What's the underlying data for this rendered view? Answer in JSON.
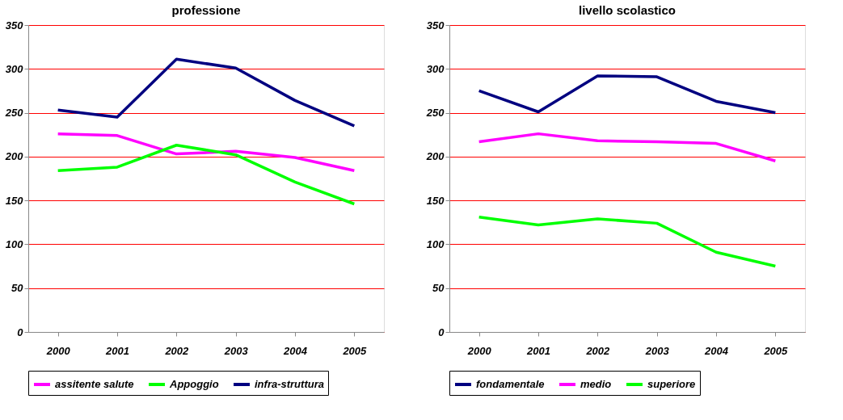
{
  "chart_data": [
    {
      "type": "line",
      "title": "professione",
      "categories": [
        "2000",
        "2001",
        "2002",
        "2003",
        "2004",
        "2005"
      ],
      "ylim": [
        0,
        350
      ],
      "yticks": [
        0,
        50,
        100,
        150,
        200,
        250,
        300,
        350
      ],
      "grid": "y",
      "legend": "bottom",
      "marker": "none",
      "line_style": "solid",
      "series": [
        {
          "name": "assitente salute",
          "color": "#ff00ff",
          "values": [
            226,
            224,
            203,
            206,
            199,
            184
          ]
        },
        {
          "name": "Appoggio",
          "color": "#00ff00",
          "values": [
            184,
            188,
            213,
            202,
            171,
            146
          ]
        },
        {
          "name": "infra-struttura",
          "color": "#000080",
          "values": [
            253,
            245,
            311,
            301,
            264,
            235
          ]
        }
      ]
    },
    {
      "type": "line",
      "title": "livello scolastico",
      "categories": [
        "2000",
        "2001",
        "2002",
        "2003",
        "2004",
        "2005"
      ],
      "ylim": [
        0,
        350
      ],
      "yticks": [
        0,
        50,
        100,
        150,
        200,
        250,
        300,
        350
      ],
      "grid": "y",
      "legend": "bottom",
      "marker": "none",
      "line_style": "solid",
      "series": [
        {
          "name": "fondamentale",
          "color": "#000080",
          "values": [
            275,
            251,
            292,
            291,
            263,
            250
          ]
        },
        {
          "name": "medio",
          "color": "#ff00ff",
          "values": [
            217,
            226,
            218,
            217,
            215,
            195
          ]
        },
        {
          "name": "superiore",
          "color": "#00ff00",
          "values": [
            131,
            122,
            129,
            124,
            91,
            75
          ]
        }
      ]
    }
  ]
}
